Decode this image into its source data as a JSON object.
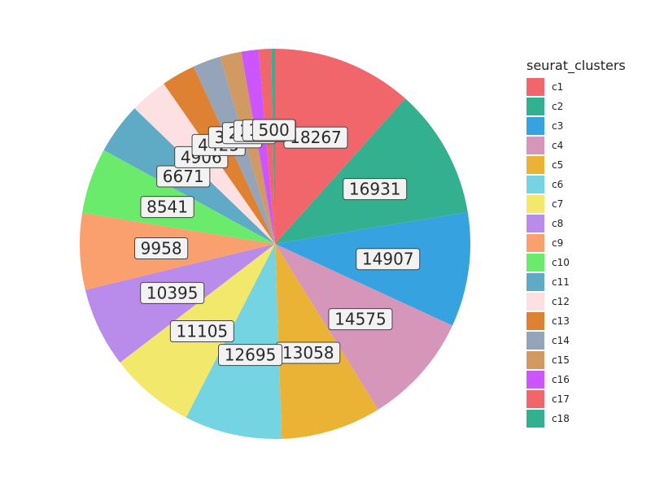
{
  "chart_data": {
    "type": "pie",
    "legend_title": "seurat_clusters",
    "legend_position": "right",
    "slices": [
      {
        "label": "c1",
        "value": 18267,
        "color": "#f0666b"
      },
      {
        "label": "c2",
        "value": 16931,
        "color": "#33b08f"
      },
      {
        "label": "c3",
        "value": 14907,
        "color": "#36a2e0"
      },
      {
        "label": "c4",
        "value": 14575,
        "color": "#d696b9"
      },
      {
        "label": "c5",
        "value": 13058,
        "color": "#ebb335"
      },
      {
        "label": "c6",
        "value": 12695,
        "color": "#74d4e1"
      },
      {
        "label": "c7",
        "value": 11105,
        "color": "#f2e86b"
      },
      {
        "label": "c8",
        "value": 10395,
        "color": "#b98bea"
      },
      {
        "label": "c9",
        "value": 9958,
        "color": "#f9a06e"
      },
      {
        "label": "c10",
        "value": 8541,
        "color": "#6beb6b"
      },
      {
        "label": "c11",
        "value": 6671,
        "color": "#5fabc6"
      },
      {
        "label": "c12",
        "value": 4906,
        "color": "#fde0e2"
      },
      {
        "label": "c13",
        "value": 4425,
        "color": "#df8133"
      },
      {
        "label": "c14",
        "value": 3600,
        "color": "#95a4b8"
      },
      {
        "label": "c15",
        "value": 2800,
        "color": "#d09a62"
      },
      {
        "label": "c16",
        "value": 2250,
        "color": "#cc55ff"
      },
      {
        "label": "c17",
        "value": 1606,
        "color": "#f0666b"
      },
      {
        "label": "c18",
        "value": 500,
        "color": "#33b08f"
      }
    ]
  }
}
